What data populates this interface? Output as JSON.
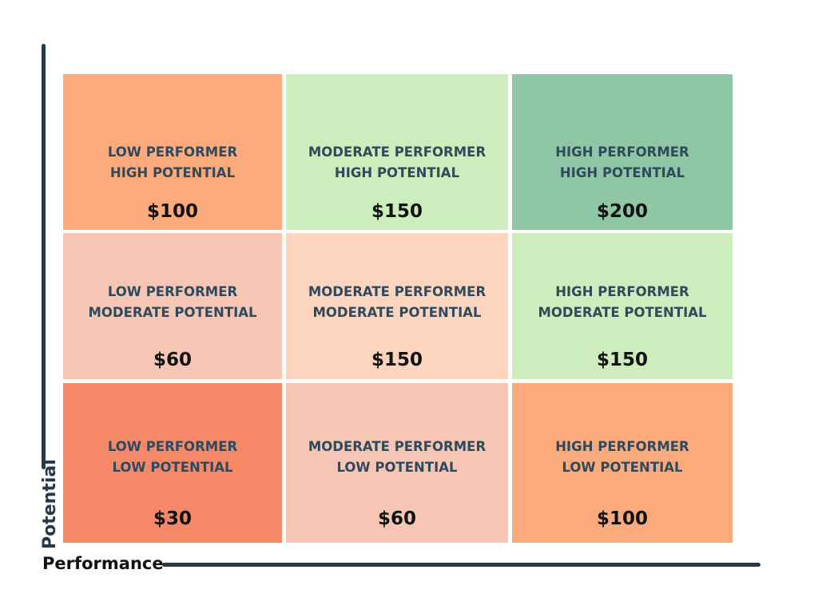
{
  "axes": {
    "y_label": "Potential",
    "x_label": "Performance",
    "line_color": "#24394a"
  },
  "grid": {
    "rows": [
      [
        {
          "line1": "LOW PERFORMER",
          "line2": "HIGH POTENTIAL",
          "value": "$100",
          "color": "#fbab7b"
        },
        {
          "line1": "MODERATE PERFORMER",
          "line2": "HIGH POTENTIAL",
          "value": "$150",
          "color": "#cdedbc"
        },
        {
          "line1": "HIGH PERFORMER",
          "line2": "HIGH POTENTIAL",
          "value": "$200",
          "color": "#8fc6a5"
        }
      ],
      [
        {
          "line1": "LOW PERFORMER",
          "line2": "MODERATE POTENTIAL",
          "value": "$60",
          "color": "#f7c5b3"
        },
        {
          "line1": "MODERATE PERFORMER",
          "line2": "MODERATE POTENTIAL",
          "value": "$150",
          "color": "#fdd5bf"
        },
        {
          "line1": "HIGH PERFORMER",
          "line2": "MODERATE POTENTIAL",
          "value": "$150",
          "color": "#cdedbc"
        }
      ],
      [
        {
          "line1": "LOW PERFORMER",
          "line2": "LOW POTENTIAL",
          "value": "$30",
          "color": "#f48867"
        },
        {
          "line1": "MODERATE PERFORMER",
          "line2": "LOW POTENTIAL",
          "value": "$60",
          "color": "#f7c5b3"
        },
        {
          "line1": "HIGH PERFORMER",
          "line2": "LOW POTENTIAL",
          "value": "$100",
          "color": "#fbab7b"
        }
      ]
    ]
  }
}
